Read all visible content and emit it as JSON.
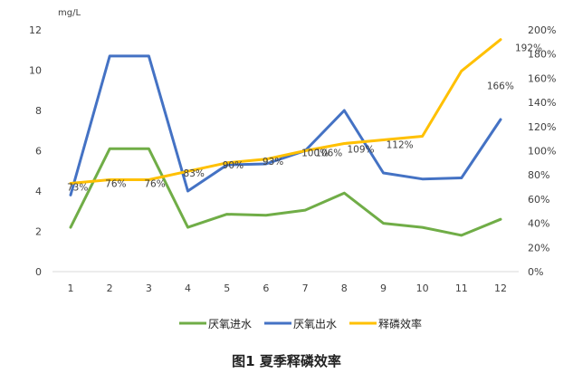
{
  "caption": "图1 夏季释磷效率",
  "chart_data": {
    "type": "line",
    "categories": [
      "1",
      "2",
      "3",
      "4",
      "5",
      "6",
      "7",
      "8",
      "9",
      "10",
      "11",
      "12"
    ],
    "y_left": {
      "unit": "mg/L",
      "range": [
        0,
        12
      ],
      "ticks": [
        "0",
        "2",
        "4",
        "6",
        "8",
        "10",
        "12"
      ]
    },
    "y_right": {
      "range": [
        0,
        200
      ],
      "ticks": [
        "0%",
        "20%",
        "40%",
        "60%",
        "80%",
        "100%",
        "120%",
        "140%",
        "160%",
        "180%",
        "200%"
      ]
    },
    "series": [
      {
        "name": "厌氧进水",
        "axis": "left",
        "color": "#70ad47",
        "values": [
          2.2,
          6.1,
          6.1,
          2.2,
          2.85,
          2.8,
          3.05,
          3.9,
          2.4,
          2.2,
          1.8,
          2.6
        ]
      },
      {
        "name": "厌氧出水",
        "axis": "left",
        "color": "#4472c4",
        "values": [
          3.8,
          10.7,
          10.7,
          4.0,
          5.3,
          5.35,
          6.0,
          8.0,
          4.9,
          4.6,
          4.65,
          7.55
        ]
      },
      {
        "name": "释磷效率",
        "axis": "right",
        "color": "#ffc000",
        "values": [
          73,
          76,
          76,
          83,
          90,
          93,
          100,
          106,
          109,
          112,
          166,
          192
        ],
        "labels": [
          "73%",
          "76%",
          "76%",
          "83%",
          "90%",
          "93%",
          "100%",
          "106%",
          "109%",
          "112%",
          "166%",
          "192%"
        ]
      }
    ],
    "legend_position": "bottom",
    "grid": false
  }
}
